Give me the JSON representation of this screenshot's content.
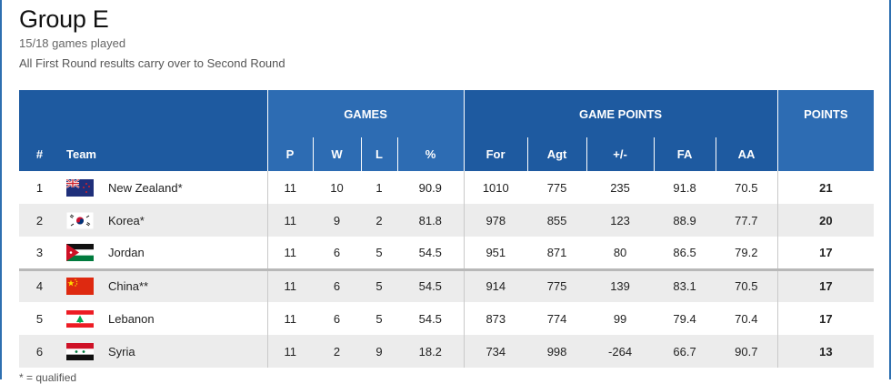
{
  "header": {
    "title": "Group E",
    "games_played": "15/18 games played",
    "note": "All First Round results carry over to Second Round"
  },
  "table": {
    "groups": {
      "games": "GAMES",
      "game_points": "GAME POINTS",
      "points": "POINTS"
    },
    "columns": {
      "rank": "#",
      "team": "Team",
      "p": "P",
      "w": "W",
      "l": "L",
      "pct": "%",
      "for": "For",
      "agt": "Agt",
      "diff": "+/-",
      "fa": "FA",
      "aa": "AA"
    },
    "rows": [
      {
        "rank": "1",
        "team": "New Zealand*",
        "flag": "new-zealand-flag-icon",
        "p": "11",
        "w": "10",
        "l": "1",
        "pct": "90.9",
        "for": "1010",
        "agt": "775",
        "diff": "235",
        "fa": "91.8",
        "aa": "70.5",
        "pts": "21"
      },
      {
        "rank": "2",
        "team": "Korea*",
        "flag": "korea-flag-icon",
        "p": "11",
        "w": "9",
        "l": "2",
        "pct": "81.8",
        "for": "978",
        "agt": "855",
        "diff": "123",
        "fa": "88.9",
        "aa": "77.7",
        "pts": "20"
      },
      {
        "rank": "3",
        "team": "Jordan",
        "flag": "jordan-flag-icon",
        "p": "11",
        "w": "6",
        "l": "5",
        "pct": "54.5",
        "for": "951",
        "agt": "871",
        "diff": "80",
        "fa": "86.5",
        "aa": "79.2",
        "pts": "17"
      },
      {
        "rank": "4",
        "team": "China**",
        "flag": "china-flag-icon",
        "p": "11",
        "w": "6",
        "l": "5",
        "pct": "54.5",
        "for": "914",
        "agt": "775",
        "diff": "139",
        "fa": "83.1",
        "aa": "70.5",
        "pts": "17"
      },
      {
        "rank": "5",
        "team": "Lebanon",
        "flag": "lebanon-flag-icon",
        "p": "11",
        "w": "6",
        "l": "5",
        "pct": "54.5",
        "for": "873",
        "agt": "774",
        "diff": "99",
        "fa": "79.4",
        "aa": "70.4",
        "pts": "17"
      },
      {
        "rank": "6",
        "team": "Syria",
        "flag": "syria-flag-icon",
        "p": "11",
        "w": "2",
        "l": "9",
        "pct": "18.2",
        "for": "734",
        "agt": "998",
        "diff": "-264",
        "fa": "66.7",
        "aa": "90.7",
        "pts": "13"
      }
    ]
  },
  "footnote": "* = qualified",
  "colors": {
    "header_dark": "#1e5aa0",
    "header_light": "#2d6cb3",
    "row_alt": "#ececec",
    "separator": "#b8b8b8"
  }
}
